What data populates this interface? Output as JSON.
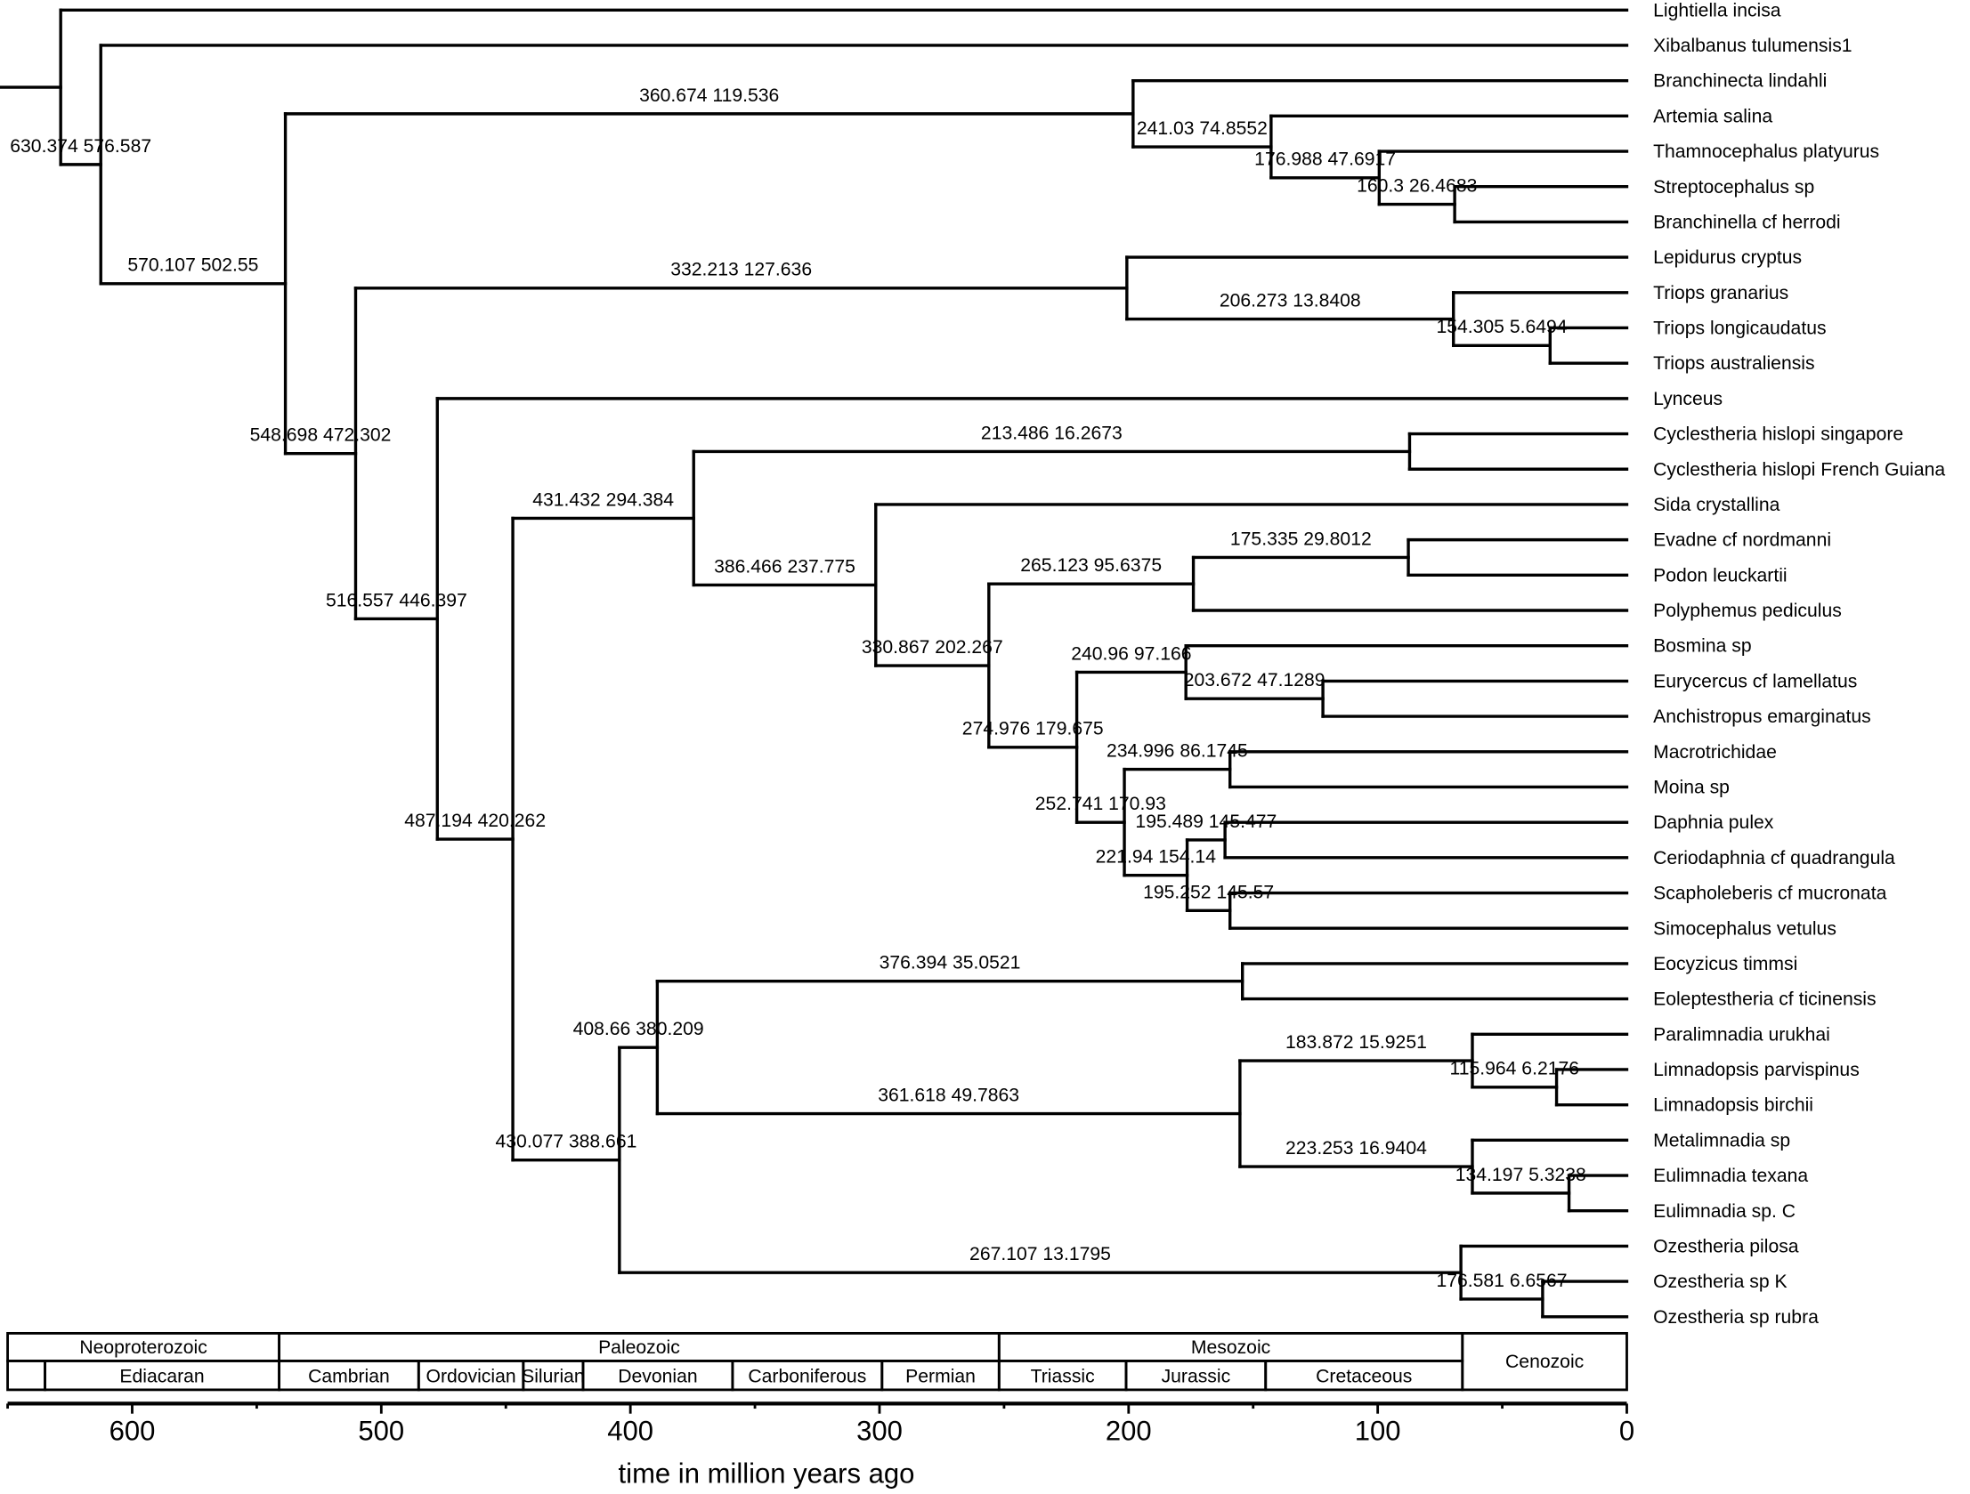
{
  "axis": {
    "label": "time in million years ago",
    "ticks": [
      600,
      500,
      400,
      300,
      200,
      100,
      0
    ],
    "minor_ticks": [
      650,
      550,
      450,
      350,
      250,
      150,
      50
    ],
    "range_max": 650
  },
  "root_age": 655,
  "tree": {
    "age": 628.7,
    "children": [
      {
        "name": "Lightiella incisa"
      },
      {
        "age": 612.6,
        "label": "630.374 576.587",
        "children": [
          {
            "name": "Xibalbanus tulumensis1"
          },
          {
            "age": 538.5,
            "label": "570.107 502.55",
            "children": [
              {
                "age": 198.2,
                "label": "360.674 119.536",
                "children": [
                  {
                    "name": "Branchinecta lindahli"
                  },
                  {
                    "age": 142.8,
                    "label": "241.03 74.8552",
                    "children": [
                      {
                        "name": "Artemia salina"
                      },
                      {
                        "age": 99.4,
                        "label": "176.988 47.6917",
                        "children": [
                          {
                            "name": "Thamnocephalus platyurus"
                          },
                          {
                            "age": 69.1,
                            "label": "160.3 26.4683",
                            "children": [
                              {
                                "name": "Streptocephalus sp"
                              },
                              {
                                "name": "Branchinella cf herrodi"
                              }
                            ]
                          }
                        ]
                      }
                    ]
                  }
                ]
              },
              {
                "age": 510.3,
                "label": "548.698 472.302",
                "children": [
                  {
                    "age": 200.7,
                    "label": "332.213 127.636",
                    "children": [
                      {
                        "name": "Lepidurus cryptus"
                      },
                      {
                        "age": 69.6,
                        "label": "206.273 13.8408",
                        "children": [
                          {
                            "name": "Triops granarius"
                          },
                          {
                            "age": 30.8,
                            "label": "154.305 5.6494",
                            "children": [
                              {
                                "name": "Triops longicaudatus"
                              },
                              {
                                "name": "Triops australiensis"
                              }
                            ]
                          }
                        ]
                      }
                    ]
                  },
                  {
                    "age": 477.5,
                    "label": "516.557 446.397",
                    "children": [
                      {
                        "name": "Lynceus"
                      },
                      {
                        "age": 447.2,
                        "label": "487.194 420.262",
                        "children": [
                          {
                            "age": 374.6,
                            "label": "431.432 294.384",
                            "children": [
                              {
                                "age": 87.2,
                                "label": "213.486 16.2673",
                                "children": [
                                  {
                                    "name": "Cyclestheria hislopi singapore"
                                  },
                                  {
                                    "name": "Cyclestheria hislopi French Guiana"
                                  }
                                ]
                              },
                              {
                                "age": 301.5,
                                "label": "386.466 237.775",
                                "children": [
                                  {
                                    "name": "Sida crystallina"
                                  },
                                  {
                                    "age": 256.1,
                                    "label": "330.867 202.267",
                                    "children": [
                                      {
                                        "age": 174.0,
                                        "label": "265.123 95.6375",
                                        "children": [
                                          {
                                            "age": 87.7,
                                            "label": "175.335 29.8012",
                                            "children": [
                                              {
                                                "name": "Evadne cf nordmanni"
                                              },
                                              {
                                                "name": "Podon leuckartii"
                                              }
                                            ]
                                          },
                                          {
                                            "name": "Polyphemus pediculus"
                                          }
                                        ]
                                      },
                                      {
                                        "age": 220.8,
                                        "label": "274.976 179.675",
                                        "children": [
                                          {
                                            "age": 177.0,
                                            "label": "240.96 97.166",
                                            "children": [
                                              {
                                                "name": "Bosmina sp"
                                              },
                                              {
                                                "age": 122.0,
                                                "label": "203.672 47.1289",
                                                "children": [
                                                  {
                                                    "name": "Eurycercus cf lamellatus"
                                                  },
                                                  {
                                                    "name": "Anchistropus emarginatus"
                                                  }
                                                ]
                                              }
                                            ]
                                          },
                                          {
                                            "age": 201.7,
                                            "label": "252.741 170.93",
                                            "children": [
                                              {
                                                "age": 159.3,
                                                "label": "234.996 86.1745",
                                                "children": [
                                                  {
                                                    "name": "Macrotrichidae"
                                                  },
                                                  {
                                                    "name": "Moina sp"
                                                  }
                                                ]
                                              },
                                              {
                                                "age": 176.5,
                                                "label": "221.94 154.14",
                                                "children": [
                                                  {
                                                    "age": 161.3,
                                                    "label": "195.489 145.477",
                                                    "children": [
                                                      {
                                                        "name": "Daphnia pulex"
                                                      },
                                                      {
                                                        "name": "Ceriodaphnia cf quadrangula"
                                                      }
                                                    ]
                                                  },
                                                  {
                                                    "age": 159.3,
                                                    "label": "195.252 145.57",
                                                    "children": [
                                                      {
                                                        "name": "Scapholeberis cf mucronata"
                                                      },
                                                      {
                                                        "name": "Simocephalus vetulus"
                                                      }
                                                    ]
                                                  }
                                                ]
                                              }
                                            ]
                                          }
                                        ]
                                      }
                                    ]
                                  }
                                ]
                              }
                            ]
                          },
                          {
                            "age": 404.4,
                            "label": "430.077 388.661",
                            "children": [
                              {
                                "age": 389.2,
                                "label": "408.66 380.209",
                                "children": [
                                  {
                                    "age": 154.3,
                                    "label": "376.394 35.0521",
                                    "children": [
                                      {
                                        "name": "Eocyzicus timmsi"
                                      },
                                      {
                                        "name": "Eoleptestheria cf ticinensis"
                                      }
                                    ]
                                  },
                                  {
                                    "age": 155.3,
                                    "label": "361.618 49.7863",
                                    "children": [
                                      {
                                        "age": 62.0,
                                        "label": "183.872 15.9251",
                                        "children": [
                                          {
                                            "name": "Paralimnadia urukhai"
                                          },
                                          {
                                            "age": 28.2,
                                            "label": "115.964 6.2176",
                                            "children": [
                                              {
                                                "name": "Limnadopsis parvispinus"
                                              },
                                              {
                                                "name": "Limnadopsis birchii"
                                              }
                                            ]
                                          }
                                        ]
                                      },
                                      {
                                        "age": 62.0,
                                        "label": "223.253 16.9404",
                                        "children": [
                                          {
                                            "name": "Metalimnadia sp"
                                          },
                                          {
                                            "age": 23.2,
                                            "label": "134.197 5.3238",
                                            "children": [
                                              {
                                                "name": "Eulimnadia texana"
                                              },
                                              {
                                                "name": "Eulimnadia sp. C"
                                              }
                                            ]
                                          }
                                        ]
                                      }
                                    ]
                                  }
                                ]
                              },
                              {
                                "age": 66.6,
                                "label": "267.107 13.1795",
                                "children": [
                                  {
                                    "name": "Ozestheria pilosa"
                                  },
                                  {
                                    "age": 33.8,
                                    "label": "176.581 6.6567",
                                    "children": [
                                      {
                                        "name": "Ozestheria sp K"
                                      },
                                      {
                                        "name": "Ozestheria sp rubra"
                                      }
                                    ]
                                  }
                                ]
                              }
                            ]
                          }
                        ]
                      }
                    ]
                  }
                ]
              }
            ]
          }
        ]
      }
    ]
  },
  "timescale": {
    "eras": [
      {
        "name": "Neoproterozoic",
        "start": 650,
        "end": 541
      },
      {
        "name": "Paleozoic",
        "start": 541,
        "end": 252
      },
      {
        "name": "Mesozoic",
        "start": 252,
        "end": 66
      },
      {
        "name": "Cenozoic",
        "start": 66,
        "end": 0
      }
    ],
    "periods": [
      {
        "name": "",
        "start": 650,
        "end": 635
      },
      {
        "name": "Ediacaran",
        "start": 635,
        "end": 541
      },
      {
        "name": "Cambrian",
        "start": 541,
        "end": 485
      },
      {
        "name": "Ordovician",
        "start": 485,
        "end": 443
      },
      {
        "name": "Silurian",
        "start": 443,
        "end": 419
      },
      {
        "name": "Devonian",
        "start": 419,
        "end": 359
      },
      {
        "name": "Carboniferous",
        "start": 359,
        "end": 299
      },
      {
        "name": "Permian",
        "start": 299,
        "end": 252
      },
      {
        "name": "Triassic",
        "start": 252,
        "end": 201
      },
      {
        "name": "Jurassic",
        "start": 201,
        "end": 145
      },
      {
        "name": "Cretaceous",
        "start": 145,
        "end": 66
      }
    ]
  }
}
